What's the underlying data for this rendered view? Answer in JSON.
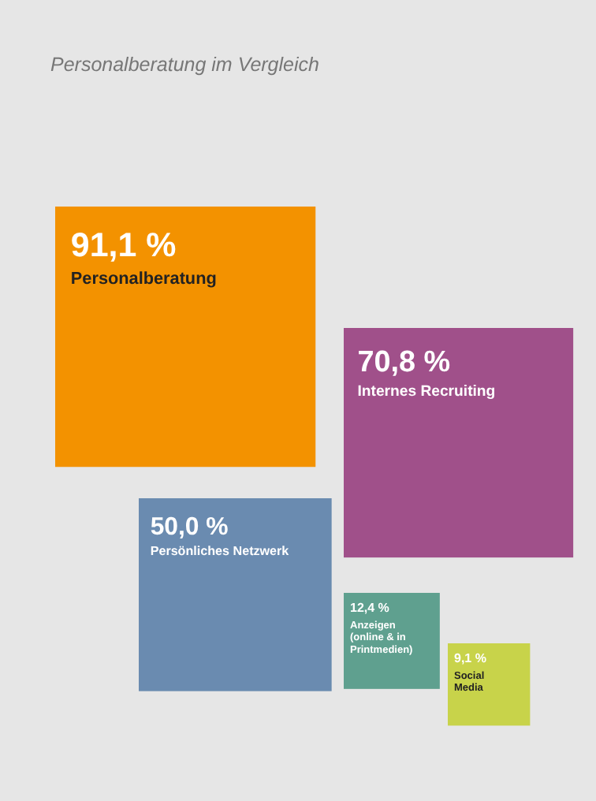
{
  "chart_data": {
    "type": "other",
    "title": "Personalberatung im Vergleich",
    "categories": [
      "Personalberatung",
      "Internes Recruiting",
      "Persönliches Netzwerk",
      "Anzeigen (online & in Printmedien)",
      "Social Media"
    ],
    "values": [
      91.1,
      70.8,
      50.0,
      12.4,
      9.1
    ],
    "value_labels": [
      "91,1 %",
      "70,8 %",
      "50,0 %",
      "12,4 %",
      "9,1 %"
    ],
    "colors": [
      "#f39200",
      "#a0508a",
      "#6a8bb0",
      "#5fa08f",
      "#c8d34a"
    ]
  }
}
